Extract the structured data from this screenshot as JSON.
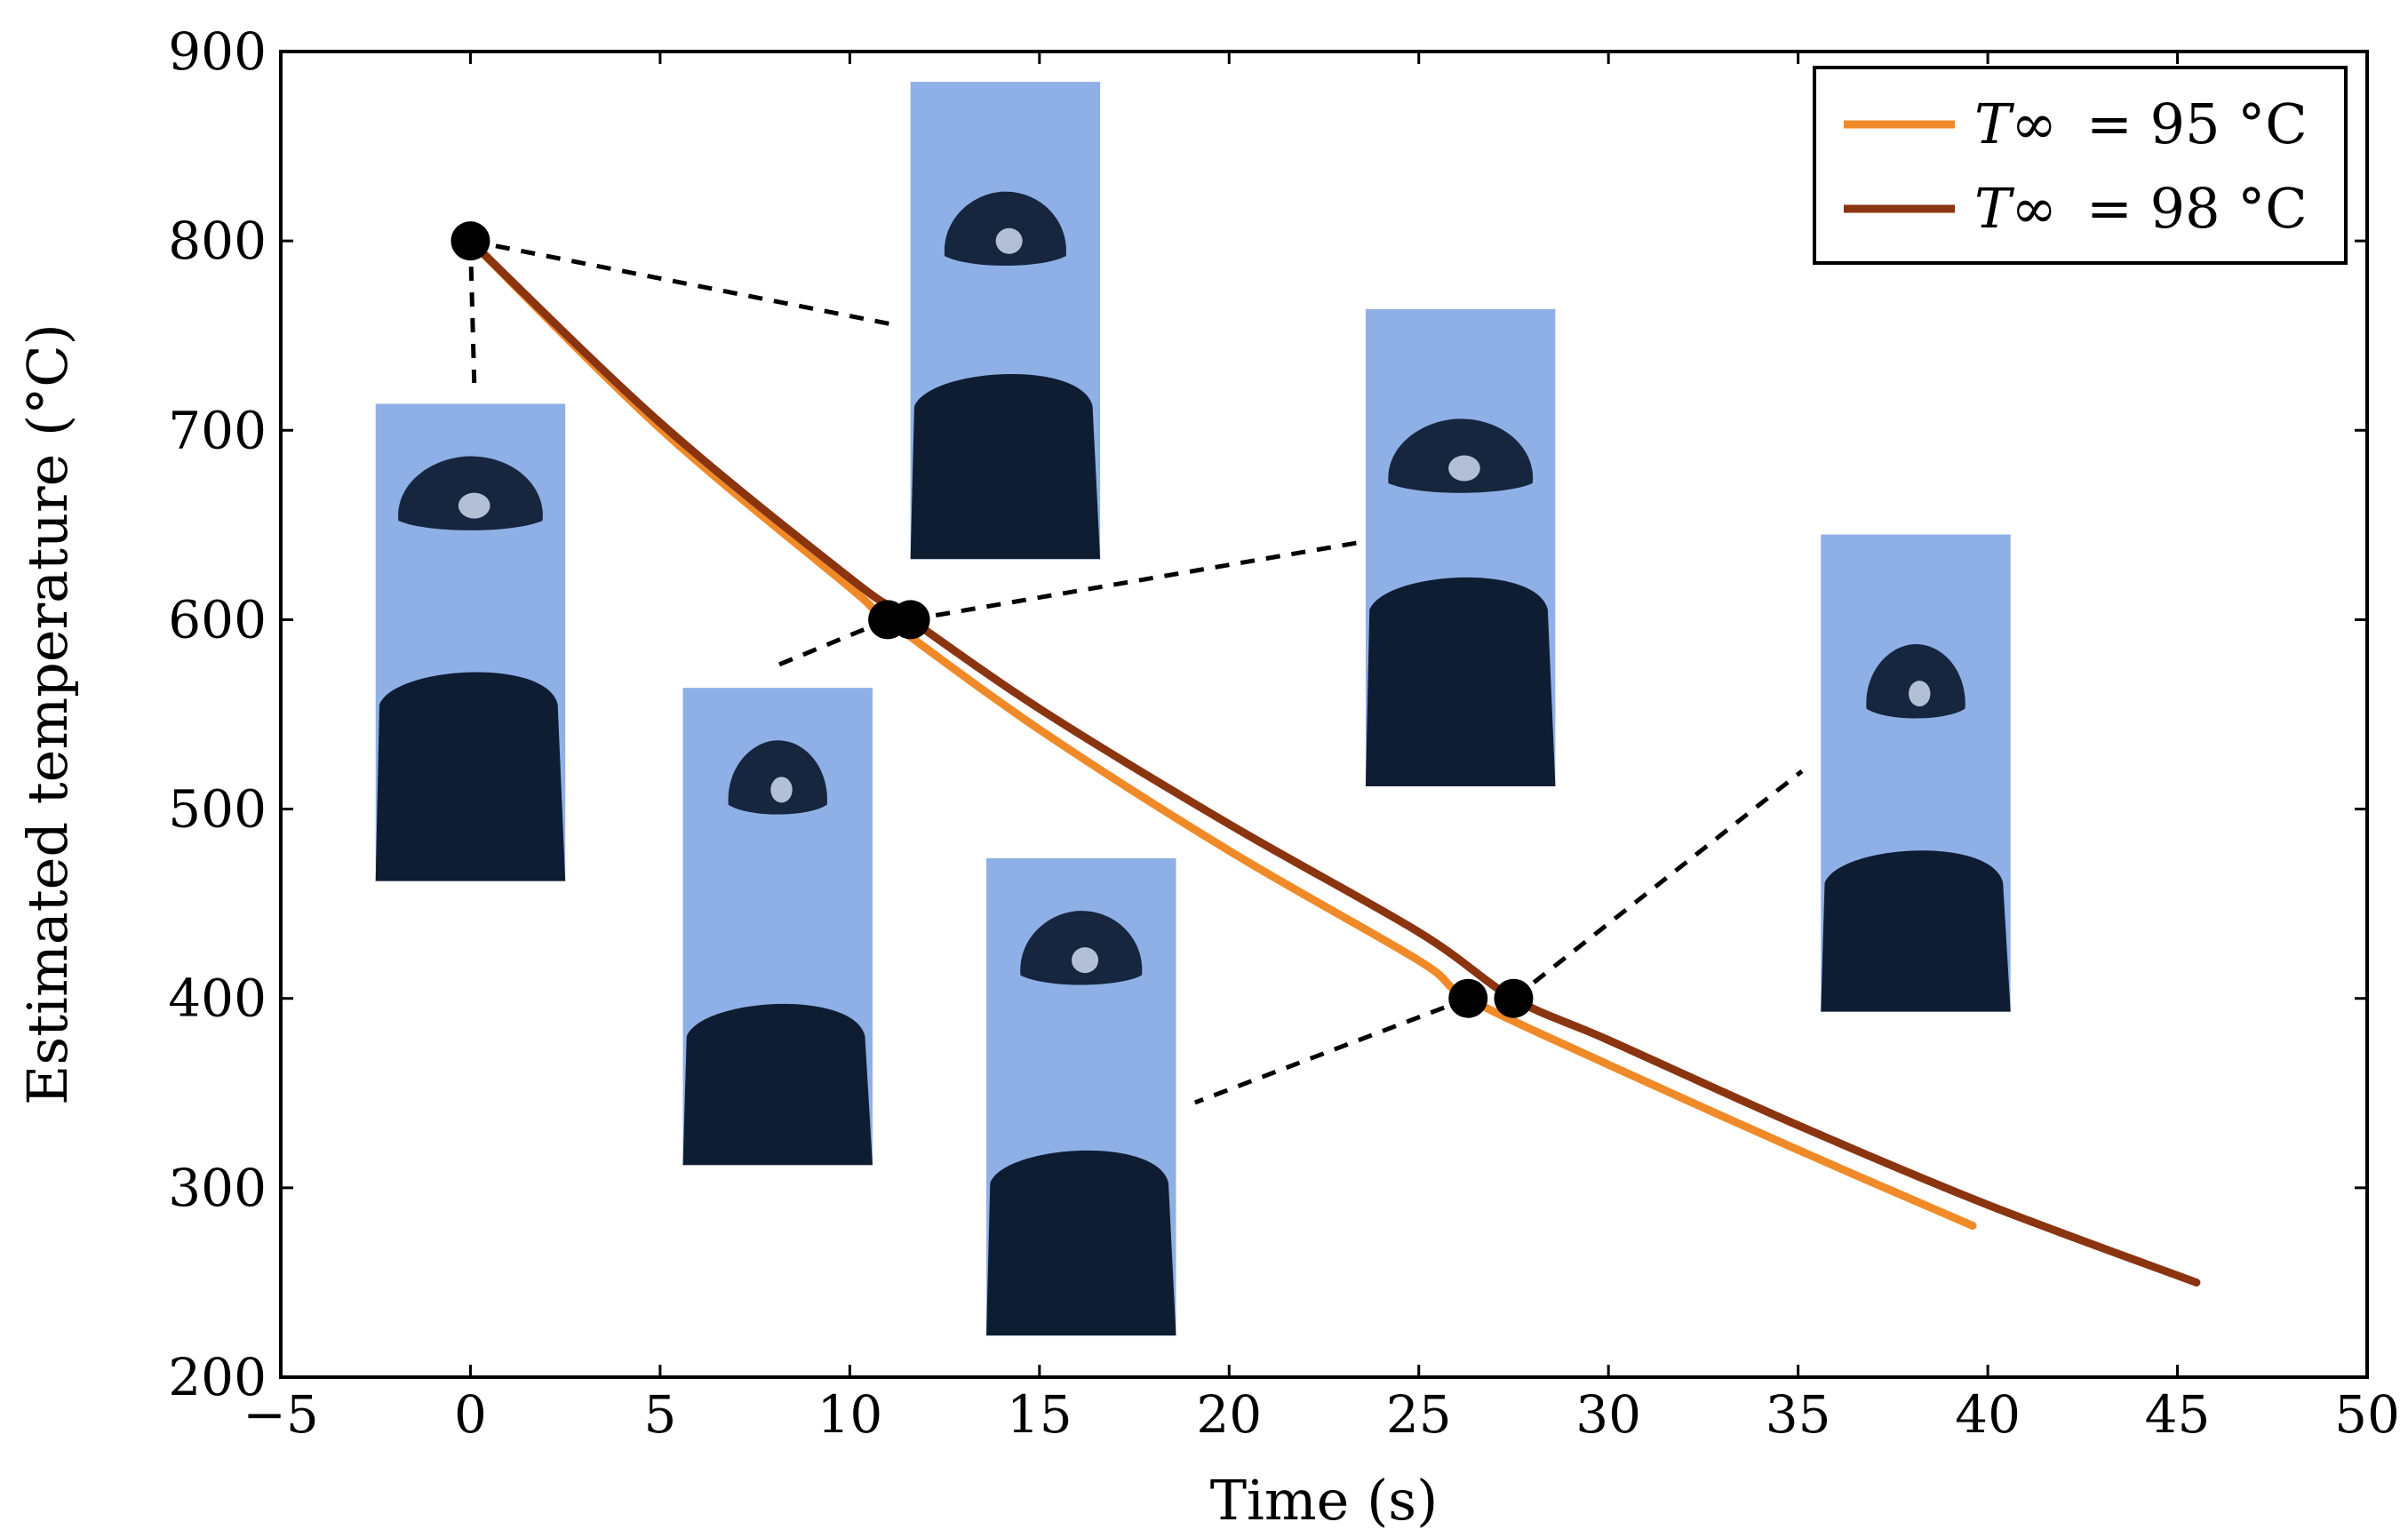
{
  "chart_data": {
    "type": "line",
    "title": "",
    "xlabel": "Time (s)",
    "ylabel": "Estimated temperature (°C)",
    "xlim": [
      -5,
      50
    ],
    "ylim": [
      200,
      900
    ],
    "xticks": [
      -5,
      0,
      5,
      10,
      15,
      20,
      25,
      30,
      35,
      40,
      45,
      50
    ],
    "xtick_labels": [
      "−5",
      "0",
      "5",
      "10",
      "15",
      "20",
      "25",
      "30",
      "35",
      "40",
      "45",
      "50"
    ],
    "yticks": [
      200,
      300,
      400,
      500,
      600,
      700,
      800,
      900
    ],
    "ytick_labels": [
      "200",
      "300",
      "400",
      "500",
      "600",
      "700",
      "800",
      "900"
    ],
    "grid": false,
    "legend_position": "top-right",
    "series": [
      {
        "name": "T∞ = 95 °C",
        "legend_symbol": "T∞",
        "legend_value": "= 95 °C",
        "color": "#f08a28",
        "x": [
          0,
          5,
          10,
          11,
          15,
          20,
          25,
          26.3,
          30,
          35,
          39.6
        ],
        "y": [
          800,
          701,
          617,
          600,
          542,
          478,
          420,
          400,
          365,
          320,
          280
        ]
      },
      {
        "name": "T∞ = 98 °C",
        "legend_symbol": "T∞",
        "legend_value": "= 98 °C",
        "color": "#8b3410",
        "x": [
          0,
          5,
          10,
          11.6,
          15,
          20,
          25,
          27.5,
          30,
          35,
          40,
          45.5
        ],
        "y": [
          800,
          704,
          622,
          600,
          553,
          492,
          435,
          400,
          378,
          333,
          291,
          250
        ]
      }
    ],
    "markers": [
      {
        "x": 0,
        "y": 800
      },
      {
        "x": 11,
        "y": 600
      },
      {
        "x": 11.6,
        "y": 600
      },
      {
        "x": 26.3,
        "y": 400
      },
      {
        "x": 27.5,
        "y": 400
      }
    ],
    "inset_images": [
      {
        "name": "inset-photo-t0-a",
        "x0": -2.5,
        "x1": 2.5,
        "y0": 462,
        "y1": 714,
        "marker": 0,
        "connector_to": [
          0.1,
          725
        ],
        "droplet_count": 2
      },
      {
        "name": "inset-photo-t0-b",
        "x0": 11.6,
        "x1": 16.6,
        "y0": 632,
        "y1": 884,
        "marker": 0,
        "connector_to": [
          11.1,
          756
        ],
        "droplet_count": 2
      },
      {
        "name": "inset-photo-t11-a",
        "x0": 5.6,
        "x1": 10.6,
        "y0": 312,
        "y1": 564,
        "marker": 1,
        "connector_to": [
          8.1,
          576
        ],
        "droplet_count": 2
      },
      {
        "name": "inset-photo-t11-b",
        "x0": 23.6,
        "x1": 28.6,
        "y0": 512,
        "y1": 764,
        "marker": 2,
        "connector_to": [
          23.5,
          641
        ],
        "droplet_count": 2
      },
      {
        "name": "inset-photo-t26-a",
        "x0": 13.6,
        "x1": 18.6,
        "y0": 222,
        "y1": 474,
        "marker": 3,
        "connector_to": [
          19.1,
          345
        ],
        "droplet_count": 2
      },
      {
        "name": "inset-photo-t26-b",
        "x0": 35.6,
        "x1": 40.6,
        "y0": 393,
        "y1": 645,
        "marker": 4,
        "connector_to": [
          35.1,
          520
        ],
        "droplet_count": 2
      }
    ]
  }
}
